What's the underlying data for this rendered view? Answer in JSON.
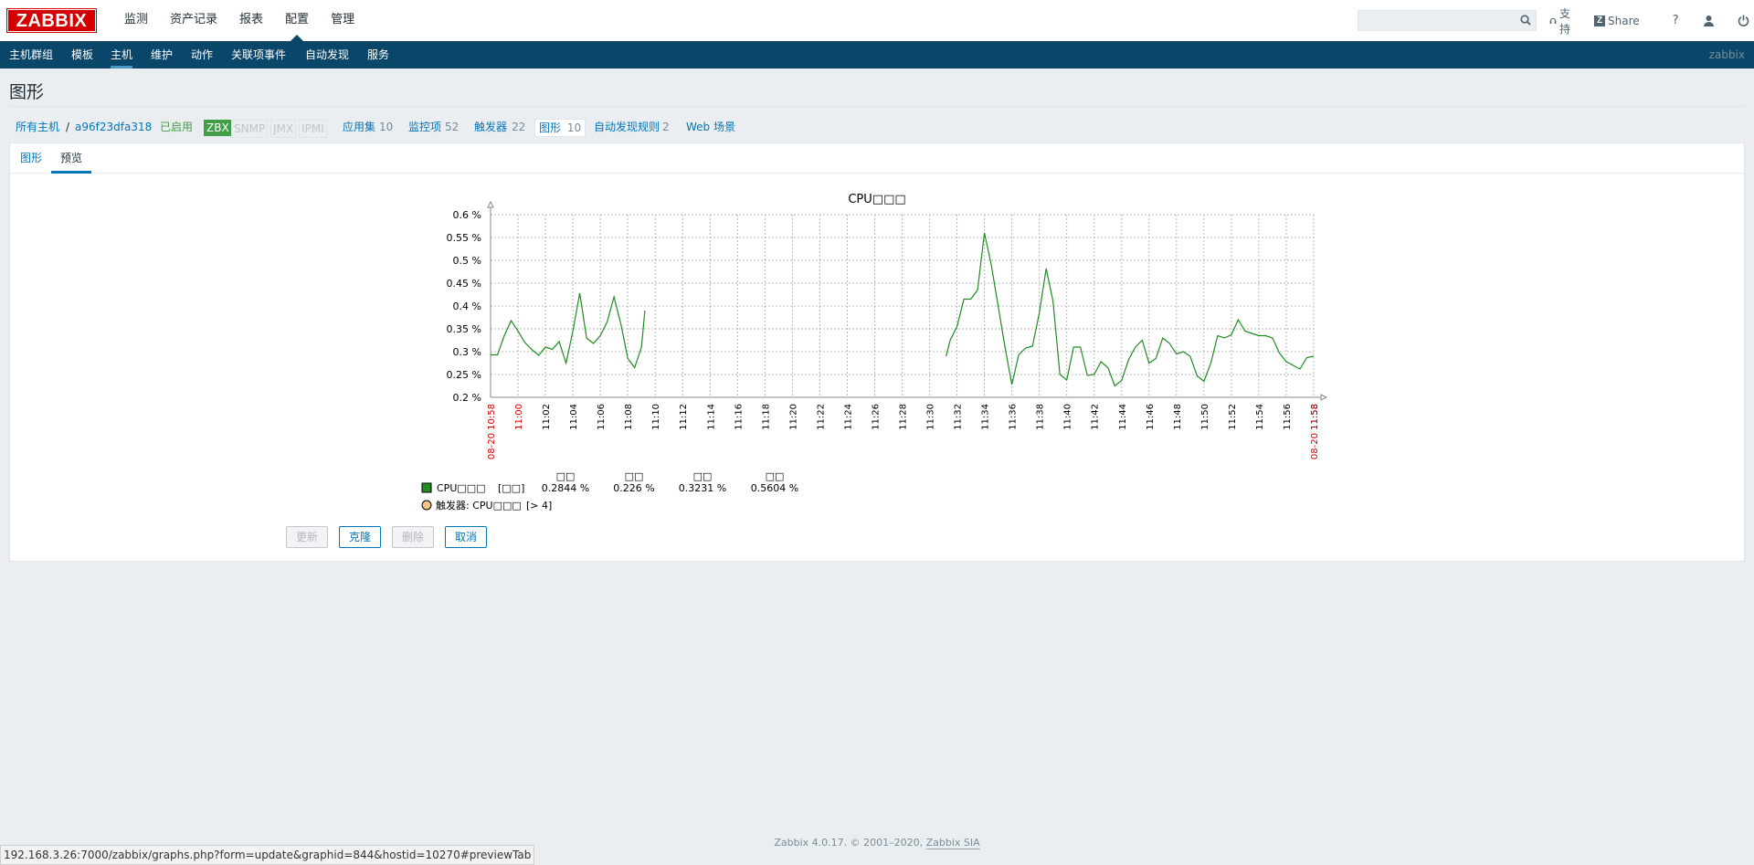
{
  "brand": {
    "logo": "ZABBIX"
  },
  "main_menu": [
    {
      "label": "监测"
    },
    {
      "label": "资产记录"
    },
    {
      "label": "报表"
    },
    {
      "label": "配置"
    },
    {
      "label": "管理"
    }
  ],
  "top_links": {
    "support": "支持",
    "share": "Share",
    "help": "?"
  },
  "sub_menu": [
    {
      "label": "主机群组"
    },
    {
      "label": "模板"
    },
    {
      "label": "主机"
    },
    {
      "label": "维护"
    },
    {
      "label": "动作"
    },
    {
      "label": "关联项事件"
    },
    {
      "label": "自动发现"
    },
    {
      "label": "服务"
    }
  ],
  "user": "zabbix",
  "page_title": "图形",
  "breadcrumb": {
    "all_hosts": "所有主机",
    "sep": "/",
    "host": "a96f23dfa318",
    "status": "已启用",
    "zbx": "ZBX",
    "snmp": "SNMP",
    "jmx": "JMX",
    "ipmi": "IPMI",
    "applications": "应用集",
    "applications_count": "10",
    "items": "监控项",
    "items_count": "52",
    "triggers": "触发器",
    "triggers_count": "22",
    "graphs": "图形",
    "graphs_count": "10",
    "discovery": "自动发现规则",
    "discovery_count": "2",
    "web": "Web 场景"
  },
  "tabs": {
    "graph": "图形",
    "preview": "预览"
  },
  "chart_data": {
    "type": "line",
    "title": "CPU□□□",
    "ylim": [
      0.2,
      0.6
    ],
    "yticks": [
      "0.6 %",
      "0.55 %",
      "0.5 %",
      "0.45 %",
      "0.4 %",
      "0.35 %",
      "0.3 %",
      "0.25 %",
      "0.2 %"
    ],
    "xticks": [
      "11:00",
      "11:02",
      "11:04",
      "11:06",
      "11:08",
      "11:10",
      "11:12",
      "11:14",
      "11:16",
      "11:18",
      "11:20",
      "11:22",
      "11:24",
      "11:26",
      "11:28",
      "11:30",
      "11:32",
      "11:34",
      "11:36",
      "11:38",
      "11:40",
      "11:42",
      "11:44",
      "11:46",
      "11:48",
      "11:50",
      "11:52",
      "11:54",
      "11:56",
      "11:58"
    ],
    "x_start_label": "08-20 10:58",
    "x_end_label": "08-20 11:58",
    "grid": true,
    "series": [
      {
        "name": "CPU□□□",
        "color": "#228b22",
        "segments": [
          [
            [
              0,
              0.293
            ],
            [
              0.5,
              0.293
            ],
            [
              1,
              0.335
            ],
            [
              1.5,
              0.368
            ],
            [
              2,
              0.345
            ],
            [
              2.5,
              0.32
            ],
            [
              3,
              0.305
            ],
            [
              3.5,
              0.292
            ],
            [
              4,
              0.31
            ],
            [
              4.5,
              0.305
            ],
            [
              5,
              0.322
            ],
            [
              5.5,
              0.275
            ],
            [
              6,
              0.345
            ],
            [
              6.5,
              0.428
            ],
            [
              7,
              0.33
            ],
            [
              7.5,
              0.318
            ],
            [
              8,
              0.335
            ],
            [
              8.5,
              0.365
            ],
            [
              9,
              0.42
            ],
            [
              9.5,
              0.36
            ],
            [
              10,
              0.285
            ],
            [
              10.5,
              0.265
            ],
            [
              11,
              0.31
            ],
            [
              11.25,
              0.39
            ]
          ],
          [
            [
              33.2,
              0.29
            ],
            [
              33.5,
              0.325
            ],
            [
              34,
              0.355
            ],
            [
              34.5,
              0.415
            ],
            [
              35,
              0.415
            ],
            [
              35.5,
              0.435
            ],
            [
              36,
              0.56
            ],
            [
              36.5,
              0.49
            ],
            [
              37,
              0.4
            ],
            [
              37.5,
              0.31
            ],
            [
              38,
              0.228
            ],
            [
              38.5,
              0.293
            ],
            [
              39,
              0.308
            ],
            [
              39.5,
              0.312
            ],
            [
              40,
              0.385
            ],
            [
              40.5,
              0.482
            ],
            [
              41,
              0.41
            ],
            [
              41.5,
              0.25
            ],
            [
              42,
              0.238
            ],
            [
              42.5,
              0.31
            ],
            [
              43,
              0.31
            ],
            [
              43.5,
              0.248
            ],
            [
              44,
              0.25
            ],
            [
              44.5,
              0.278
            ],
            [
              45,
              0.265
            ],
            [
              45.5,
              0.225
            ],
            [
              46,
              0.237
            ],
            [
              46.5,
              0.282
            ],
            [
              47,
              0.31
            ],
            [
              47.5,
              0.325
            ],
            [
              48,
              0.275
            ],
            [
              48.5,
              0.285
            ],
            [
              49,
              0.33
            ],
            [
              49.5,
              0.318
            ],
            [
              50,
              0.295
            ],
            [
              50.5,
              0.3
            ],
            [
              51,
              0.29
            ],
            [
              51.5,
              0.247
            ],
            [
              52,
              0.235
            ],
            [
              52.5,
              0.275
            ],
            [
              53,
              0.335
            ],
            [
              53.5,
              0.33
            ],
            [
              54,
              0.337
            ],
            [
              54.5,
              0.37
            ],
            [
              55,
              0.345
            ],
            [
              55.5,
              0.34
            ],
            [
              56,
              0.335
            ],
            [
              56.5,
              0.335
            ],
            [
              57,
              0.33
            ],
            [
              57.5,
              0.297
            ],
            [
              58,
              0.278
            ],
            [
              58.5,
              0.27
            ],
            [
              59,
              0.262
            ],
            [
              59.5,
              0.287
            ],
            [
              60,
              0.29
            ]
          ]
        ]
      }
    ],
    "legend": {
      "headers": [
        "□□",
        "□□",
        "□□",
        "□□"
      ],
      "rows": [
        {
          "name": "CPU□□□",
          "fn": "[□□]",
          "last": "0.2844 %",
          "min": "0.226 %",
          "avg": "0.3231 %",
          "max": "0.5604 %",
          "color": "#228b22",
          "shape": "square"
        },
        {
          "name": "触发器: CPU□□□",
          "fn": "[> 4]",
          "color": "#f4c28a",
          "shape": "circle"
        }
      ]
    }
  },
  "buttons": {
    "update": "更新",
    "clone": "克隆",
    "delete": "删除",
    "cancel": "取消"
  },
  "footer": {
    "text": "Zabbix 4.0.17. © 2001–2020, ",
    "link": "Zabbix SIA"
  },
  "status_url": "192.168.3.26:7000/zabbix/graphs.php?form=update&graphid=844&hostid=10270#previewTab"
}
